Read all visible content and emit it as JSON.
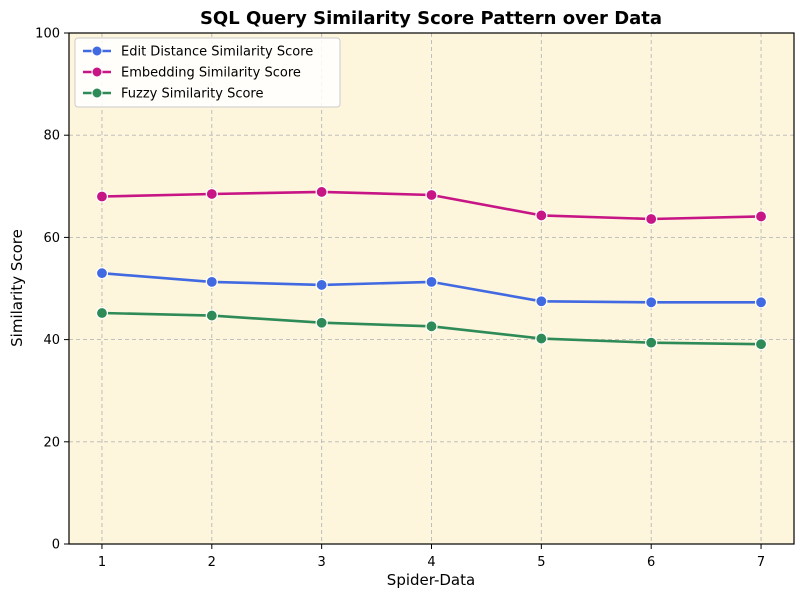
{
  "chart_data": {
    "type": "line",
    "title": "SQL Query Similarity Score Pattern over Data",
    "xlabel": "Spider-Data",
    "ylabel": "Similarity Score",
    "x": [
      1,
      2,
      3,
      4,
      5,
      6,
      7
    ],
    "x_ticks": [
      "1",
      "2",
      "3",
      "4",
      "5",
      "6",
      "7"
    ],
    "y_ticks": [
      "0",
      "20",
      "40",
      "60",
      "80",
      "100"
    ],
    "xlim": [
      0.7,
      7.3
    ],
    "ylim": [
      0,
      100
    ],
    "grid": true,
    "legend_position": "upper-left",
    "plot_background": "#fdf5dc",
    "series": [
      {
        "name": "Edit Distance Similarity Score",
        "color": "#4169e1",
        "values": [
          53.0,
          51.3,
          50.7,
          51.3,
          47.5,
          47.3,
          47.3
        ]
      },
      {
        "name": "Embedding Similarity Score",
        "color": "#c71585",
        "values": [
          68.0,
          68.5,
          68.9,
          68.3,
          64.3,
          63.6,
          64.1
        ]
      },
      {
        "name": "Fuzzy Similarity Score",
        "color": "#2e8b57",
        "values": [
          45.2,
          44.7,
          43.3,
          42.6,
          40.2,
          39.4,
          39.1
        ]
      }
    ]
  }
}
